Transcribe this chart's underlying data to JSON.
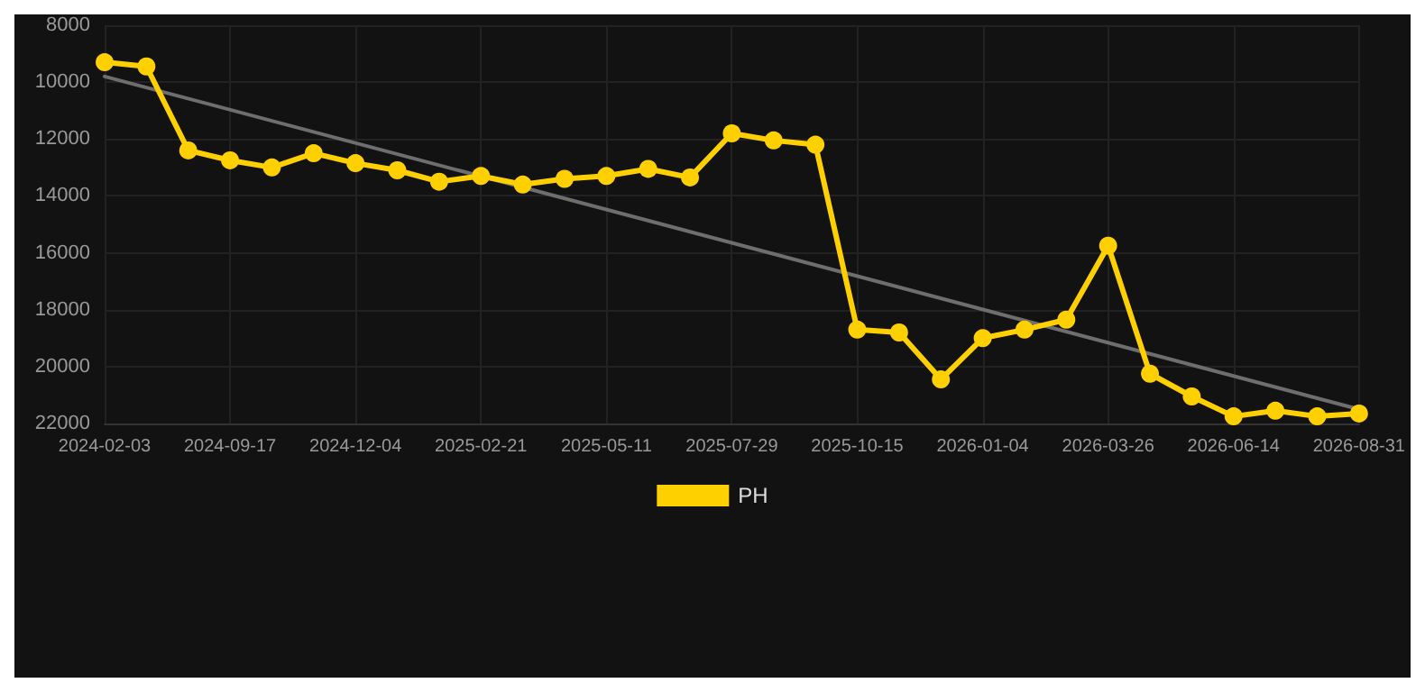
{
  "chart_data": {
    "type": "line",
    "categories": [
      "2024-02-03",
      null,
      null,
      "2024-09-17",
      null,
      null,
      "2024-12-04",
      null,
      null,
      "2025-02-21",
      null,
      null,
      "2025-05-11",
      null,
      null,
      "2025-07-29",
      null,
      null,
      "2025-10-15",
      null,
      null,
      "2026-01-04",
      null,
      null,
      "2026-03-26",
      null,
      null,
      "2026-06-14",
      null,
      null,
      "2026-08-31"
    ],
    "series": [
      {
        "name": "PH",
        "color": "#ffd000",
        "values": [
          9300,
          9450,
          12400,
          12750,
          13000,
          12500,
          12850,
          13100,
          13500,
          13300,
          13600,
          13400,
          13300,
          13050,
          13350,
          11800,
          12050,
          12200,
          18700,
          18800,
          20450,
          19000,
          18700,
          18350,
          15750,
          20250,
          21050,
          21750,
          21550,
          21750,
          21650
        ]
      },
      {
        "type": "line",
        "color": "#6e6e6e",
        "values": [
          9800,
          null,
          null,
          null,
          null,
          null,
          null,
          null,
          null,
          null,
          null,
          null,
          null,
          null,
          null,
          null,
          null,
          null,
          null,
          null,
          null,
          null,
          null,
          null,
          null,
          null,
          null,
          null,
          null,
          null,
          21500
        ],
        "marker": "none"
      }
    ],
    "ylim": [
      22000,
      8000
    ],
    "yticks": [
      8000,
      10000,
      12000,
      14000,
      16000,
      18000,
      20000,
      22000
    ],
    "grid": true,
    "legend": "bottom",
    "marker": "circle",
    "line_style": "solid"
  }
}
